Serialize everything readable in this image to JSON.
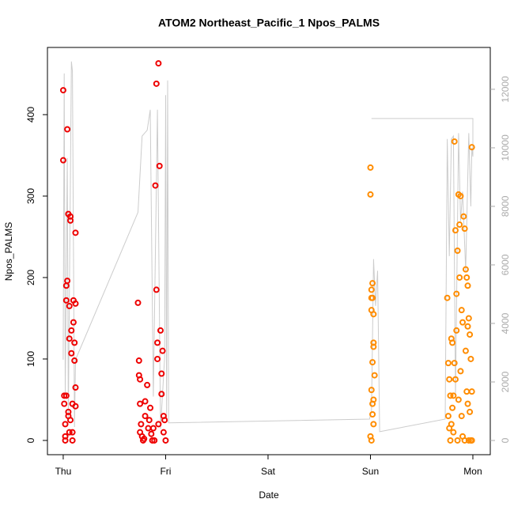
{
  "chart_data": {
    "type": "scatter",
    "title": "ATOM2 Northeast_Pacific_1 Npos_PALMS",
    "xlabel": "Date",
    "ylabel": "Npos_PALMS",
    "xlim": [
      -0.154,
      4.17
    ],
    "xticks": [
      {
        "value": 0,
        "label": "Thu"
      },
      {
        "value": 1,
        "label": "Fri"
      },
      {
        "value": 2,
        "label": "Sat"
      },
      {
        "value": 3,
        "label": "Sun"
      },
      {
        "value": 4,
        "label": "Mon"
      }
    ],
    "ylim": [
      -17.5,
      482.5
    ],
    "yticks": [
      0,
      100,
      200,
      300,
      400
    ],
    "y2lim": [
      -486,
      13430
    ],
    "y2ticks": [
      0,
      2000,
      4000,
      6000,
      8000,
      10000,
      12000
    ],
    "y2_color": "#aaaaaa",
    "series": [
      {
        "color": "#ee0000",
        "x": [
          0.0,
          0.0,
          0.01,
          0.01,
          0.02,
          0.02,
          0.03,
          0.03,
          0.04,
          0.04,
          0.05,
          0.05,
          0.06,
          0.06,
          0.07,
          0.07,
          0.08,
          0.08,
          0.09,
          0.09,
          0.1,
          0.1,
          0.11,
          0.11,
          0.12,
          0.12,
          0.12,
          0.12,
          0.02,
          0.05,
          0.07,
          0.09,
          0.03,
          0.06,
          0.73,
          0.74,
          0.74,
          0.75,
          0.75,
          0.76,
          0.77,
          0.78,
          0.8,
          0.8,
          0.82,
          0.83,
          0.85,
          0.86,
          0.87,
          0.89,
          0.9,
          0.91,
          0.91,
          0.92,
          0.92,
          0.93,
          0.94,
          0.95,
          0.96,
          0.96,
          0.97,
          0.98,
          0.98,
          0.99,
          1.0,
          0.75,
          0.79,
          0.84,
          0.88,
          0.93
        ],
        "values": [
          430,
          344,
          55,
          45,
          20,
          5,
          190,
          172,
          382,
          196,
          278,
          30,
          125,
          10,
          275,
          270,
          135,
          107,
          45,
          0,
          172,
          145,
          120,
          98,
          255,
          168,
          65,
          42,
          0,
          35,
          25,
          10,
          55,
          165,
          169,
          98,
          80,
          75,
          45,
          20,
          5,
          0,
          48,
          30,
          68,
          15,
          40,
          8,
          0,
          0,
          313,
          438,
          185,
          120,
          100,
          463,
          337,
          135,
          82,
          57,
          110,
          30,
          10,
          25,
          0,
          10,
          2,
          25,
          15,
          20
        ]
      },
      {
        "color": "#ff8c00",
        "x": [
          3.0,
          3.0,
          3.01,
          3.01,
          3.01,
          3.02,
          3.02,
          3.03,
          3.02,
          3.03,
          3.03,
          3.01,
          3.02,
          3.03,
          3.04,
          3.02,
          3.03,
          3.0,
          3.01,
          3.75,
          3.76,
          3.77,
          3.78,
          3.79,
          3.8,
          3.82,
          3.83,
          3.84,
          3.85,
          3.86,
          3.87,
          3.88,
          3.89,
          3.9,
          3.91,
          3.92,
          3.93,
          3.94,
          3.95,
          3.96,
          3.97,
          3.98,
          3.99,
          3.99,
          3.76,
          3.77,
          3.78,
          3.8,
          3.81,
          3.82,
          3.83,
          3.84,
          3.86,
          3.87,
          3.88,
          3.89,
          3.9,
          3.92,
          3.94,
          3.95,
          3.96,
          3.97,
          3.98,
          3.99,
          3.85,
          3.79,
          3.81,
          3.93,
          3.95
        ],
        "values": [
          335,
          302,
          185,
          175,
          160,
          193,
          175,
          155,
          96,
          120,
          115,
          62,
          45,
          50,
          80,
          32,
          20,
          5,
          0,
          175,
          95,
          75,
          55,
          125,
          120,
          367,
          258,
          180,
          233,
          302,
          265,
          300,
          160,
          145,
          275,
          260,
          210,
          200,
          190,
          150,
          130,
          100,
          60,
          360,
          30,
          15,
          0,
          40,
          10,
          95,
          75,
          135,
          50,
          200,
          85,
          30,
          5,
          0,
          60,
          45,
          0,
          35,
          0,
          0,
          0,
          20,
          55,
          110,
          140
        ]
      },
      {
        "color": "#cccccc",
        "type": "line",
        "axis": "y2",
        "x": [
          0,
          0.01,
          0.02,
          0.04,
          0.05,
          0.08,
          0.09,
          0.11,
          0.12,
          0.73,
          0.75,
          0.77,
          0.82,
          0.85,
          0.88,
          0.92,
          0.95,
          0.99,
          1.0,
          1.01,
          1.02,
          1.03,
          2.99,
          3.01,
          3.03,
          3.05,
          3.07,
          3.09,
          3.73,
          3.75,
          3.77,
          3.79,
          3.81,
          3.83,
          3.86,
          3.88,
          3.9,
          3.93,
          3.96,
          3.98,
          3.99,
          4.0,
          4.0,
          3.01
        ],
        "values": [
          2760,
          12540,
          1540,
          9650,
          730,
          12950,
          12620,
          460,
          2760,
          7800,
          9100,
          10400,
          10600,
          11300,
          1500,
          11300,
          400,
          2840,
          11800,
          730,
          12300,
          600,
          730,
          1000,
          6200,
          4600,
          5800,
          300,
          730,
          10300,
          6300,
          10300,
          10400,
          1500,
          10500,
          7500,
          8500,
          5800,
          10500,
          8000,
          10000,
          9700,
          11000,
          11000
        ]
      }
    ]
  }
}
